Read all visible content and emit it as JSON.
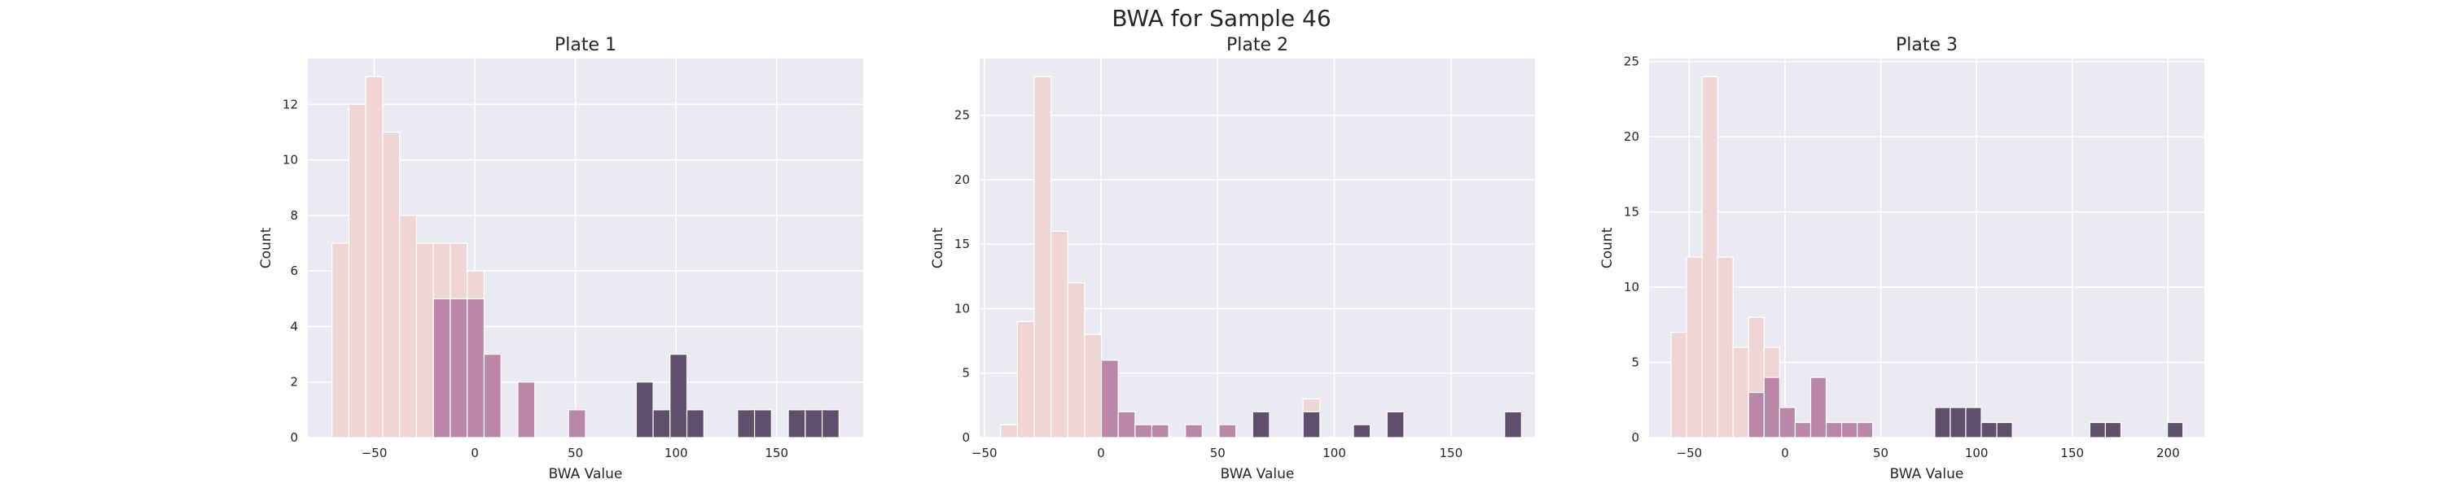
{
  "figure": {
    "title": "BWA for Sample 46"
  },
  "colors": {
    "background": "#eaeaf2",
    "grid": "#ffffff",
    "bar_edge": "#ffffff"
  },
  "chart_data": [
    {
      "type": "bar",
      "subtype": "stacked-histogram",
      "title": "Plate 1",
      "xlabel": "BWA Value",
      "ylabel": "Count",
      "xlim": [
        -83,
        193
      ],
      "ylim": [
        0,
        13.65
      ],
      "xticks": [
        -50,
        0,
        50,
        100,
        150
      ],
      "yticks": [
        0,
        2,
        4,
        6,
        8,
        10,
        12
      ],
      "grid": true,
      "legend": "none",
      "bin_width": 8.4,
      "series": [
        {
          "color": "#efd6d4",
          "bins": [
            {
              "x0": -71.0,
              "value": 7
            },
            {
              "x0": -62.6,
              "value": 12
            },
            {
              "x0": -54.2,
              "value": 13
            },
            {
              "x0": -45.8,
              "value": 11
            },
            {
              "x0": -37.4,
              "value": 8
            },
            {
              "x0": -29.0,
              "value": 7
            },
            {
              "x0": -20.6,
              "value": 7
            },
            {
              "x0": -12.2,
              "value": 7
            },
            {
              "x0": -3.8,
              "value": 6
            }
          ]
        },
        {
          "color": "#bb87a8",
          "bins": [
            {
              "x0": -20.6,
              "value": 5
            },
            {
              "x0": -12.2,
              "value": 5
            },
            {
              "x0": -3.8,
              "value": 5
            },
            {
              "x0": 4.6,
              "value": 3
            },
            {
              "x0": 21.4,
              "value": 2
            },
            {
              "x0": 46.6,
              "value": 1
            }
          ]
        },
        {
          "color": "#5f4f6c",
          "bins": [
            {
              "x0": 80.2,
              "value": 2
            },
            {
              "x0": 88.6,
              "value": 1
            },
            {
              "x0": 97.0,
              "value": 3
            },
            {
              "x0": 105.4,
              "value": 1
            },
            {
              "x0": 130.6,
              "value": 1
            },
            {
              "x0": 139.0,
              "value": 1
            },
            {
              "x0": 155.8,
              "value": 1
            },
            {
              "x0": 164.2,
              "value": 1
            },
            {
              "x0": 172.6,
              "value": 1
            }
          ]
        }
      ]
    },
    {
      "type": "bar",
      "subtype": "stacked-histogram",
      "title": "Plate 2",
      "xlabel": "BWA Value",
      "ylabel": "Count",
      "xlim": [
        -52,
        186
      ],
      "ylim": [
        0,
        29.4
      ],
      "xticks": [
        -50,
        0,
        50,
        100,
        150
      ],
      "yticks": [
        0,
        5,
        10,
        15,
        20,
        25
      ],
      "grid": true,
      "legend": "none",
      "bin_width": 7.2,
      "series": [
        {
          "color": "#efd6d4",
          "bins": [
            {
              "x0": -43.0,
              "value": 1
            },
            {
              "x0": -35.8,
              "value": 9
            },
            {
              "x0": -28.6,
              "value": 28
            },
            {
              "x0": -21.4,
              "value": 16
            },
            {
              "x0": -14.2,
              "value": 12
            },
            {
              "x0": -7.0,
              "value": 8
            },
            {
              "x0": 0.2,
              "value": 6
            },
            {
              "x0": 86.6,
              "value": 3
            }
          ]
        },
        {
          "color": "#bb87a8",
          "bins": [
            {
              "x0": 0.2,
              "value": 6
            },
            {
              "x0": 7.4,
              "value": 2
            },
            {
              "x0": 14.6,
              "value": 1
            },
            {
              "x0": 21.8,
              "value": 1
            },
            {
              "x0": 36.2,
              "value": 1
            },
            {
              "x0": 50.6,
              "value": 1
            }
          ]
        },
        {
          "color": "#5f4f6c",
          "bins": [
            {
              "x0": 65.0,
              "value": 2
            },
            {
              "x0": 86.6,
              "value": 2
            },
            {
              "x0": 108.2,
              "value": 1
            },
            {
              "x0": 122.6,
              "value": 2
            },
            {
              "x0": 173.0,
              "value": 2
            }
          ]
        }
      ]
    },
    {
      "type": "bar",
      "subtype": "stacked-histogram",
      "title": "Plate 3",
      "xlabel": "BWA Value",
      "ylabel": "Count",
      "xlim": [
        -71,
        219
      ],
      "ylim": [
        0,
        25.2
      ],
      "xticks": [
        -50,
        0,
        50,
        100,
        150,
        200
      ],
      "yticks": [
        0,
        5,
        10,
        15,
        20,
        25
      ],
      "grid": true,
      "legend": "none",
      "bin_width": 8.1,
      "series": [
        {
          "color": "#efd6d4",
          "bins": [
            {
              "x0": -59.5,
              "value": 7
            },
            {
              "x0": -51.4,
              "value": 12
            },
            {
              "x0": -43.3,
              "value": 24
            },
            {
              "x0": -35.2,
              "value": 12
            },
            {
              "x0": -27.1,
              "value": 6
            },
            {
              "x0": -19.0,
              "value": 8
            },
            {
              "x0": -10.9,
              "value": 6
            }
          ]
        },
        {
          "color": "#bb87a8",
          "bins": [
            {
              "x0": -19.0,
              "value": 3
            },
            {
              "x0": -10.9,
              "value": 4
            },
            {
              "x0": -2.8,
              "value": 2
            },
            {
              "x0": 5.3,
              "value": 1
            },
            {
              "x0": 13.4,
              "value": 4
            },
            {
              "x0": 21.5,
              "value": 1
            },
            {
              "x0": 29.6,
              "value": 1
            },
            {
              "x0": 37.7,
              "value": 1
            }
          ]
        },
        {
          "color": "#5f4f6c",
          "bins": [
            {
              "x0": 78.2,
              "value": 2
            },
            {
              "x0": 86.3,
              "value": 2
            },
            {
              "x0": 94.4,
              "value": 2
            },
            {
              "x0": 102.5,
              "value": 1
            },
            {
              "x0": 110.6,
              "value": 1
            },
            {
              "x0": 159.2,
              "value": 1
            },
            {
              "x0": 167.3,
              "value": 1
            },
            {
              "x0": 199.7,
              "value": 1
            }
          ]
        }
      ]
    }
  ]
}
